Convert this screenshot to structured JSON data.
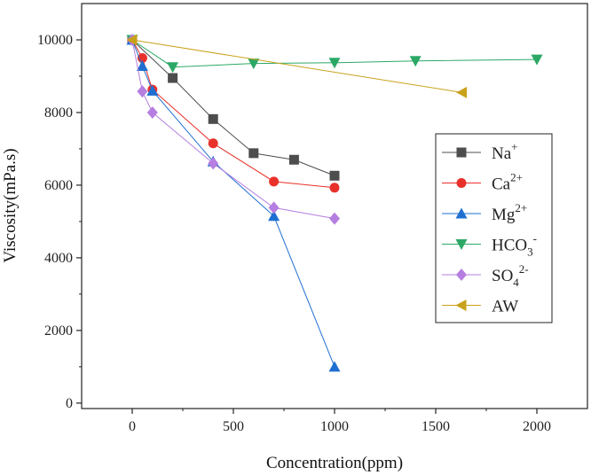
{
  "chart_data": {
    "type": "line",
    "xlabel": "Concentration(ppm)",
    "ylabel": "Viscosity(mPa.s)",
    "xlim": [
      -250,
      2250
    ],
    "ylim": [
      -150,
      11000
    ],
    "xticks": [
      0,
      500,
      1000,
      1500,
      2000
    ],
    "yticks": [
      0,
      2000,
      4000,
      6000,
      8000,
      10000
    ],
    "legend_position": "right",
    "grid": false,
    "series": [
      {
        "name": "Na⁺",
        "legend_base": "Na",
        "legend_sub": "",
        "legend_sup": "+",
        "color": "#4d4d4d",
        "marker": "square",
        "x": [
          0,
          200,
          400,
          600,
          800,
          1000
        ],
        "y": [
          10000,
          8950,
          7820,
          6880,
          6700,
          6260
        ]
      },
      {
        "name": "Ca²⁺",
        "legend_base": "Ca",
        "legend_sub": "",
        "legend_sup": "2+",
        "color": "#e8312a",
        "marker": "circle",
        "x": [
          0,
          50,
          100,
          400,
          700,
          1000
        ],
        "y": [
          10000,
          9500,
          8630,
          7150,
          6100,
          5930
        ]
      },
      {
        "name": "Mg²⁺",
        "legend_base": "Mg",
        "legend_sub": "",
        "legend_sup": "2+",
        "color": "#1f6fd1",
        "marker": "triangle-up",
        "x": [
          0,
          50,
          100,
          400,
          700,
          1000
        ],
        "y": [
          10000,
          9280,
          8600,
          6650,
          5150,
          1000
        ]
      },
      {
        "name": "HCO₃⁻",
        "legend_base": "HCO",
        "legend_sub": "3",
        "legend_sup": "-",
        "color": "#2ca866",
        "marker": "triangle-down",
        "x": [
          0,
          200,
          600,
          1000,
          1400,
          2000
        ],
        "y": [
          10000,
          9250,
          9350,
          9370,
          9420,
          9460
        ]
      },
      {
        "name": "SO₄²⁻",
        "legend_base": "SO",
        "legend_sub": "4",
        "legend_sup": "2-",
        "color": "#b57ee0",
        "marker": "diamond",
        "x": [
          0,
          50,
          100,
          400,
          700,
          1000
        ],
        "y": [
          10000,
          8580,
          8000,
          6600,
          5380,
          5080
        ]
      },
      {
        "name": "AW",
        "legend_base": "AW",
        "legend_sub": "",
        "legend_sup": "",
        "color": "#c9a21c",
        "marker": "triangle-left",
        "x": [
          0,
          1630
        ],
        "y": [
          10000,
          8550
        ]
      }
    ]
  }
}
